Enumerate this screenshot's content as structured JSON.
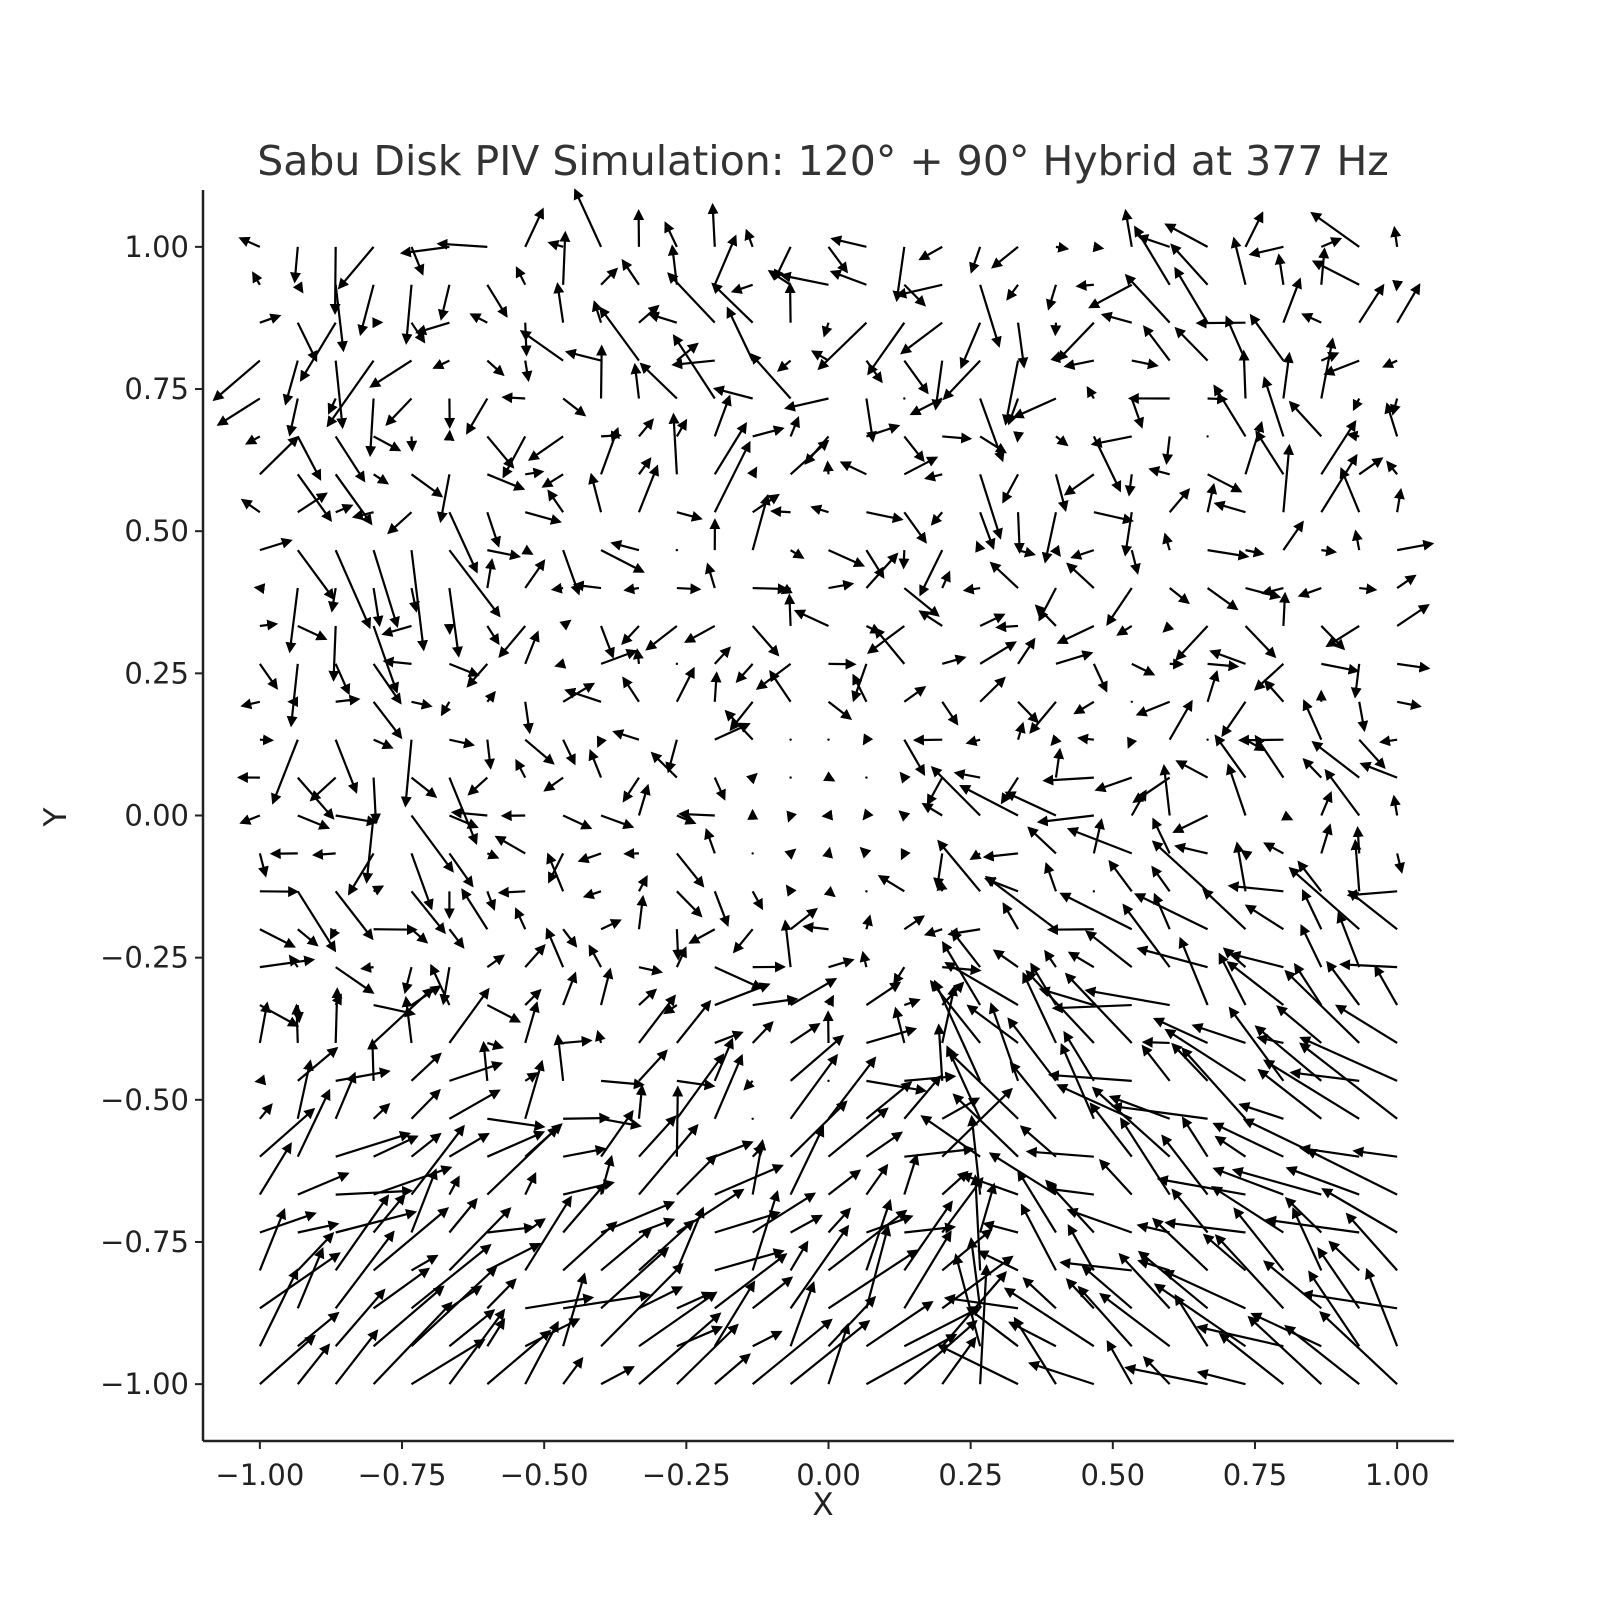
{
  "chart_data": {
    "type": "quiver",
    "title": "Sabu Disk PIV Simulation: 120° + 90° Hybrid at 377 Hz",
    "xlabel": "X",
    "ylabel": "Y",
    "xlim": [
      -1.1,
      1.1
    ],
    "ylim": [
      -1.1,
      1.1
    ],
    "xticks": [
      -1.0,
      -0.75,
      -0.5,
      -0.25,
      0.0,
      0.25,
      0.5,
      0.75,
      1.0
    ],
    "yticks": [
      -1.0,
      -0.75,
      -0.5,
      -0.25,
      0.0,
      0.25,
      0.5,
      0.75,
      1.0
    ],
    "xtick_labels": [
      "−1.00",
      "−0.75",
      "−0.50",
      "−0.25",
      "0.00",
      "0.25",
      "0.50",
      "0.75",
      "1.00"
    ],
    "ytick_labels": [
      "−1.00",
      "−0.75",
      "−0.50",
      "−0.25",
      "0.00",
      "0.25",
      "0.50",
      "0.75",
      "1.00"
    ],
    "grid": false,
    "legend": "none",
    "arrow_color": "#000000",
    "field": {
      "x_range": [
        -1.0,
        1.0
      ],
      "y_range": [
        -1.0,
        1.0
      ],
      "nx": 31,
      "ny": 31,
      "description": "Noisy two-dimensional velocity field: strong outward diagonal flow toward lower-left and lower-right regions, near-zero flow around center, vertical flow along top band."
    }
  }
}
